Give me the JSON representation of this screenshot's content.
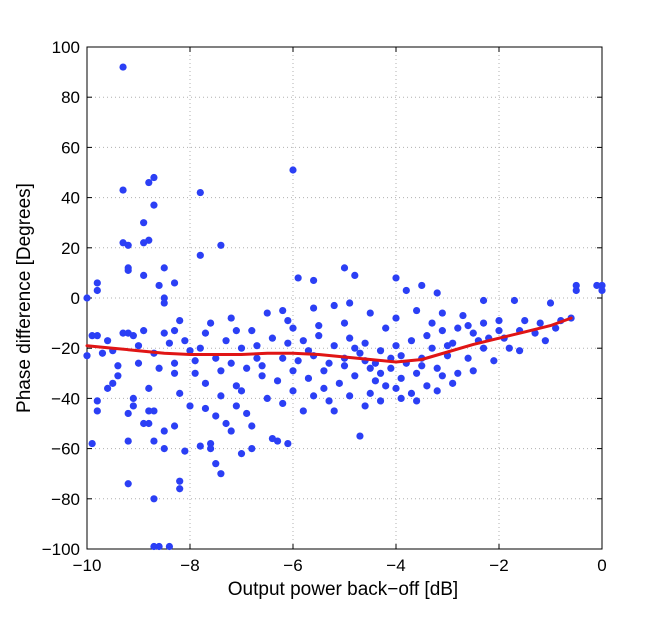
{
  "chart_data": {
    "type": "scatter",
    "xlabel": "Output power back−off [dB]",
    "ylabel": "Phase difference [Degrees]",
    "xlim": [
      -10,
      0
    ],
    "ylim": [
      -100,
      100
    ],
    "xticks": [
      -10,
      -8,
      -6,
      -4,
      -2,
      0
    ],
    "yticks": [
      -100,
      -80,
      -60,
      -40,
      -20,
      0,
      20,
      40,
      60,
      80,
      100
    ],
    "xtick_labels": [
      "−10",
      "−8",
      "−6",
      "−4",
      "−2",
      "0"
    ],
    "ytick_labels": [
      "−100",
      "−80",
      "−60",
      "−40",
      "−20",
      "0",
      "20",
      "40",
      "60",
      "80",
      "100"
    ],
    "grid": true,
    "colors": {
      "points": "#2b3ff5",
      "fit": "#e01515"
    },
    "series": [
      {
        "kind": "scatter",
        "points": [
          [
            -9.3,
            92
          ],
          [
            -8.7,
            48
          ],
          [
            -8.8,
            46
          ],
          [
            -7.8,
            42
          ],
          [
            -6.0,
            51
          ],
          [
            -9.3,
            43
          ],
          [
            -8.7,
            37
          ],
          [
            -8.9,
            30
          ],
          [
            -8.8,
            23
          ],
          [
            -8.9,
            22
          ],
          [
            -9.3,
            22
          ],
          [
            -9.2,
            21
          ],
          [
            -7.4,
            21
          ],
          [
            -7.8,
            17
          ],
          [
            -9.2,
            12
          ],
          [
            -9.2,
            11
          ],
          [
            -8.5,
            12
          ],
          [
            -8.9,
            9
          ],
          [
            -9.8,
            6
          ],
          [
            -9.8,
            3
          ],
          [
            -10.0,
            0
          ],
          [
            -8.6,
            5
          ],
          [
            -8.3,
            6
          ],
          [
            -8.5,
            0
          ],
          [
            -8.5,
            -2
          ],
          [
            -5.0,
            12
          ],
          [
            -4.8,
            9
          ],
          [
            -5.9,
            8
          ],
          [
            -5.6,
            7
          ],
          [
            -4.0,
            8
          ],
          [
            -3.8,
            3
          ],
          [
            -3.5,
            5
          ],
          [
            -3.2,
            2
          ],
          [
            -2.3,
            -1
          ],
          [
            -1.7,
            -1
          ],
          [
            -1.0,
            -2
          ],
          [
            -0.5,
            3
          ],
          [
            -0.5,
            5
          ],
          [
            -0.1,
            5
          ],
          [
            0.0,
            5
          ],
          [
            0.0,
            3
          ],
          [
            -9.8,
            -15
          ],
          [
            -9.9,
            -15
          ],
          [
            -9.6,
            -17
          ],
          [
            -9.2,
            -14
          ],
          [
            -9.1,
            -15
          ],
          [
            -9.5,
            -21
          ],
          [
            -9.7,
            -22
          ],
          [
            -10.0,
            -23
          ],
          [
            -9.5,
            -34
          ],
          [
            -9.6,
            -36
          ],
          [
            -9.8,
            -41
          ],
          [
            -9.8,
            -45
          ],
          [
            -9.9,
            -58
          ],
          [
            -9.1,
            -40
          ],
          [
            -9.1,
            -43
          ],
          [
            -9.2,
            -46
          ],
          [
            -8.7,
            -45
          ],
          [
            -8.8,
            -45
          ],
          [
            -8.8,
            -50
          ],
          [
            -8.9,
            -50
          ],
          [
            -8.7,
            -57
          ],
          [
            -9.2,
            -57
          ],
          [
            -8.5,
            -60
          ],
          [
            -8.1,
            -61
          ],
          [
            -8.3,
            -51
          ],
          [
            -8.5,
            -53
          ],
          [
            -8.2,
            -73
          ],
          [
            -8.7,
            -80
          ],
          [
            -9.2,
            -74
          ],
          [
            -8.7,
            -99
          ],
          [
            -8.6,
            -99
          ],
          [
            -8.4,
            -99
          ],
          [
            -8.2,
            -76
          ],
          [
            -7.6,
            -58
          ],
          [
            -7.8,
            -59
          ],
          [
            -7.5,
            -66
          ],
          [
            -7.4,
            -70
          ],
          [
            -7.2,
            -53
          ],
          [
            -7.3,
            -50
          ],
          [
            -7.1,
            -43
          ],
          [
            -7.7,
            -44
          ],
          [
            -6.8,
            -51
          ],
          [
            -6.8,
            -60
          ],
          [
            -6.3,
            -57
          ],
          [
            -6.4,
            -56
          ],
          [
            -6.1,
            -58
          ],
          [
            -5.8,
            -45
          ],
          [
            -5.2,
            -45
          ],
          [
            -4.7,
            -55
          ],
          [
            -4.6,
            -43
          ],
          [
            -4.3,
            -41
          ],
          [
            -3.9,
            -40
          ],
          [
            -7.0,
            -62
          ],
          [
            -7.6,
            -60
          ],
          [
            -7.9,
            -30
          ],
          [
            -7.4,
            -39
          ],
          [
            -7.0,
            -37
          ],
          [
            -8.0,
            -21
          ],
          [
            -8.5,
            -14
          ],
          [
            -8.9,
            -13
          ],
          [
            -9.3,
            -14
          ],
          [
            -8.2,
            -9
          ],
          [
            -8.3,
            -13
          ],
          [
            -7.6,
            -10
          ],
          [
            -7.2,
            -8
          ],
          [
            -6.5,
            -6
          ],
          [
            -6.2,
            -5
          ],
          [
            -5.6,
            -4
          ],
          [
            -5.2,
            -3
          ],
          [
            -4.9,
            -2
          ],
          [
            -4.5,
            -6
          ],
          [
            -4.0,
            -8
          ],
          [
            -3.6,
            -5
          ],
          [
            -3.1,
            -6
          ],
          [
            -2.7,
            -7
          ],
          [
            -2.3,
            -10
          ],
          [
            -2.0,
            -9
          ],
          [
            -1.5,
            -9
          ],
          [
            -1.2,
            -10
          ],
          [
            -0.8,
            -9
          ],
          [
            -0.6,
            -8
          ],
          [
            -1.6,
            -13
          ],
          [
            -1.9,
            -16
          ],
          [
            -2.4,
            -17
          ],
          [
            -2.9,
            -18
          ],
          [
            -3.3,
            -20
          ],
          [
            -3.0,
            -23
          ],
          [
            -2.6,
            -24
          ],
          [
            -2.1,
            -25
          ],
          [
            -1.8,
            -20
          ],
          [
            -3.2,
            -28
          ],
          [
            -3.6,
            -30
          ],
          [
            -3.9,
            -32
          ],
          [
            -4.2,
            -35
          ],
          [
            -4.5,
            -28
          ],
          [
            -4.8,
            -31
          ],
          [
            -5.1,
            -34
          ],
          [
            -5.4,
            -36
          ],
          [
            -5.7,
            -32
          ],
          [
            -6.0,
            -29
          ],
          [
            -6.3,
            -33
          ],
          [
            -6.6,
            -31
          ],
          [
            -6.9,
            -28
          ],
          [
            -7.2,
            -26
          ],
          [
            -7.5,
            -24
          ],
          [
            -7.8,
            -20
          ],
          [
            -8.1,
            -17
          ],
          [
            -8.4,
            -18
          ],
          [
            -8.7,
            -22
          ],
          [
            -9.0,
            -26
          ],
          [
            -9.4,
            -27
          ],
          [
            -6.4,
            -16
          ],
          [
            -6.1,
            -18
          ],
          [
            -5.8,
            -17
          ],
          [
            -5.5,
            -15
          ],
          [
            -5.2,
            -19
          ],
          [
            -4.9,
            -16
          ],
          [
            -4.6,
            -18
          ],
          [
            -4.3,
            -21
          ],
          [
            -4.0,
            -19
          ],
          [
            -3.7,
            -17
          ],
          [
            -3.4,
            -15
          ],
          [
            -3.1,
            -13
          ],
          [
            -2.8,
            -12
          ],
          [
            -2.5,
            -14
          ],
          [
            -2.2,
            -16
          ],
          [
            -5.9,
            -25
          ],
          [
            -5.6,
            -23
          ],
          [
            -5.3,
            -26
          ],
          [
            -5.0,
            -24
          ],
          [
            -4.7,
            -22
          ],
          [
            -4.4,
            -26
          ],
          [
            -4.1,
            -28
          ],
          [
            -3.8,
            -26
          ],
          [
            -3.5,
            -24
          ],
          [
            -6.7,
            -24
          ],
          [
            -7.0,
            -20
          ],
          [
            -7.3,
            -17
          ],
          [
            -6.8,
            -13
          ],
          [
            -6.0,
            -12
          ],
          [
            -5.0,
            -10
          ],
          [
            -4.2,
            -12
          ],
          [
            -3.3,
            -10
          ],
          [
            -2.6,
            -11
          ],
          [
            -4.4,
            -33
          ],
          [
            -4.0,
            -36
          ],
          [
            -3.7,
            -38
          ],
          [
            -3.4,
            -35
          ],
          [
            -3.1,
            -31
          ],
          [
            -2.8,
            -30
          ],
          [
            -5.6,
            -39
          ],
          [
            -6.0,
            -37
          ],
          [
            -6.5,
            -40
          ],
          [
            -7.1,
            -35
          ],
          [
            -7.7,
            -34
          ],
          [
            -8.3,
            -30
          ],
          [
            -8.6,
            -28
          ],
          [
            -8.2,
            -38
          ],
          [
            -8.0,
            -43
          ],
          [
            -7.5,
            -47
          ],
          [
            -6.9,
            -46
          ],
          [
            -6.2,
            -42
          ],
          [
            -5.3,
            -41
          ],
          [
            -4.9,
            -39
          ],
          [
            -8.3,
            -26
          ],
          [
            -7.9,
            -25
          ],
          [
            -7.4,
            -29
          ],
          [
            -6.6,
            -27
          ],
          [
            -5.4,
            -29
          ],
          [
            -4.6,
            -25
          ],
          [
            -3.9,
            -23
          ],
          [
            -3.0,
            -19
          ],
          [
            -2.3,
            -20
          ],
          [
            -1.3,
            -14
          ],
          [
            -0.9,
            -12
          ],
          [
            -1.1,
            -17
          ],
          [
            -1.6,
            -21
          ],
          [
            -2.0,
            -13
          ],
          [
            -3.5,
            -27
          ],
          [
            -4.3,
            -30
          ],
          [
            -5.0,
            -27
          ],
          [
            -5.7,
            -21
          ],
          [
            -6.2,
            -24
          ],
          [
            -6.7,
            -19
          ],
          [
            -7.1,
            -13
          ],
          [
            -7.7,
            -14
          ],
          [
            -8.8,
            -36
          ],
          [
            -9.4,
            -31
          ],
          [
            -9.0,
            -19
          ],
          [
            -4.5,
            -38
          ],
          [
            -3.6,
            -41
          ],
          [
            -3.2,
            -37
          ],
          [
            -2.9,
            -34
          ],
          [
            -2.5,
            -29
          ],
          [
            -4.1,
            -24
          ],
          [
            -4.8,
            -20
          ],
          [
            -5.5,
            -11
          ],
          [
            -6.1,
            -9
          ]
        ]
      },
      {
        "kind": "fit-line",
        "points": [
          [
            -10.0,
            -19
          ],
          [
            -9.5,
            -20
          ],
          [
            -9.0,
            -21
          ],
          [
            -8.5,
            -22
          ],
          [
            -8.0,
            -22.5
          ],
          [
            -7.5,
            -22.5
          ],
          [
            -7.0,
            -22.5
          ],
          [
            -6.5,
            -22
          ],
          [
            -6.0,
            -22
          ],
          [
            -5.5,
            -22.5
          ],
          [
            -5.0,
            -23.5
          ],
          [
            -4.5,
            -24.5
          ],
          [
            -4.0,
            -25.5
          ],
          [
            -3.5,
            -24.5
          ],
          [
            -3.0,
            -21.5
          ],
          [
            -2.5,
            -18.5
          ],
          [
            -2.0,
            -16
          ],
          [
            -1.5,
            -13.5
          ],
          [
            -1.0,
            -11
          ],
          [
            -0.6,
            -8
          ]
        ]
      }
    ]
  }
}
